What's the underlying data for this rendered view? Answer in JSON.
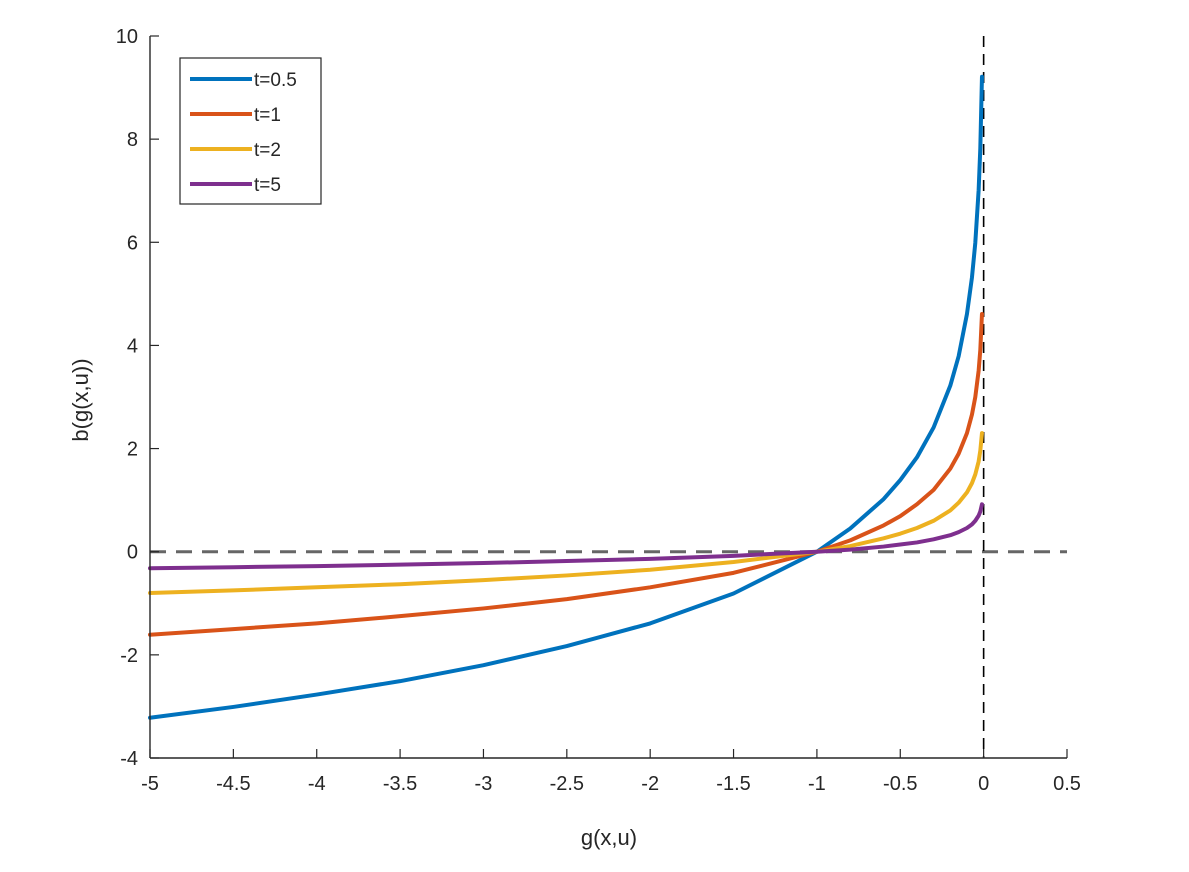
{
  "chart_data": {
    "type": "line",
    "xlabel": "g(x,u)",
    "ylabel": "b(g(x,u))",
    "xlim": [
      -5,
      0.5
    ],
    "ylim": [
      -4,
      10
    ],
    "xticks": [
      -5,
      -4.5,
      -4,
      -3.5,
      -3,
      -2.5,
      -2,
      -1.5,
      -1,
      -0.5,
      0,
      0.5
    ],
    "yticks": [
      -4,
      -2,
      0,
      2,
      4,
      6,
      8,
      10
    ],
    "xtick_labels": [
      "-5",
      "-4.5",
      "-4",
      "-3.5",
      "-3",
      "-2.5",
      "-2",
      "-1.5",
      "-1",
      "-0.5",
      "0",
      "0.5"
    ],
    "ytick_labels": [
      "-4",
      "-2",
      "0",
      "2",
      "4",
      "6",
      "8",
      "10"
    ],
    "grid": false,
    "legend": {
      "position": "top-left"
    },
    "reference_lines": [
      {
        "orientation": "horizontal",
        "y": 0,
        "style": "dashed",
        "color": "#666666"
      },
      {
        "orientation": "vertical",
        "x": 0,
        "style": "dashed",
        "color": "#000000"
      }
    ],
    "series": [
      {
        "name": "t=0.5",
        "color": "#0072BD",
        "x": [
          -5,
          -4.5,
          -4,
          -3.5,
          -3,
          -2.5,
          -2,
          -1.5,
          -1,
          -0.8,
          -0.6,
          -0.5,
          -0.4,
          -0.3,
          -0.2,
          -0.15,
          -0.1,
          -0.07,
          -0.05,
          -0.03,
          -0.02,
          -0.01
        ],
        "y": [
          -3.22,
          -3.01,
          -2.77,
          -2.51,
          -2.2,
          -1.83,
          -1.39,
          -0.81,
          0.0,
          0.45,
          1.02,
          1.39,
          1.83,
          2.41,
          3.22,
          3.79,
          4.61,
          5.32,
          5.99,
          7.01,
          7.82,
          9.21
        ]
      },
      {
        "name": "t=1",
        "color": "#D95319",
        "x": [
          -5,
          -4.5,
          -4,
          -3.5,
          -3,
          -2.5,
          -2,
          -1.5,
          -1,
          -0.8,
          -0.6,
          -0.5,
          -0.4,
          -0.3,
          -0.2,
          -0.15,
          -0.1,
          -0.07,
          -0.05,
          -0.03,
          -0.02,
          -0.01
        ],
        "y": [
          -1.61,
          -1.5,
          -1.39,
          -1.25,
          -1.1,
          -0.92,
          -0.69,
          -0.41,
          0.0,
          0.22,
          0.51,
          0.69,
          0.92,
          1.2,
          1.61,
          1.9,
          2.3,
          2.66,
          3.0,
          3.51,
          3.91,
          4.61
        ]
      },
      {
        "name": "t=2",
        "color": "#EDB120",
        "x": [
          -5,
          -4.5,
          -4,
          -3.5,
          -3,
          -2.5,
          -2,
          -1.5,
          -1,
          -0.8,
          -0.6,
          -0.5,
          -0.4,
          -0.3,
          -0.2,
          -0.15,
          -0.1,
          -0.07,
          -0.05,
          -0.03,
          -0.02,
          -0.01
        ],
        "y": [
          -0.8,
          -0.75,
          -0.69,
          -0.63,
          -0.55,
          -0.46,
          -0.35,
          -0.2,
          0.0,
          0.11,
          0.26,
          0.35,
          0.46,
          0.6,
          0.8,
          0.95,
          1.15,
          1.33,
          1.5,
          1.75,
          1.96,
          2.3
        ]
      },
      {
        "name": "t=5",
        "color": "#7E2F8E",
        "x": [
          -5,
          -4.5,
          -4,
          -3.5,
          -3,
          -2.5,
          -2,
          -1.5,
          -1,
          -0.8,
          -0.6,
          -0.5,
          -0.4,
          -0.3,
          -0.2,
          -0.15,
          -0.1,
          -0.07,
          -0.05,
          -0.03,
          -0.02,
          -0.01
        ],
        "y": [
          -0.32,
          -0.3,
          -0.28,
          -0.25,
          -0.22,
          -0.18,
          -0.14,
          -0.08,
          0.0,
          0.04,
          0.1,
          0.14,
          0.18,
          0.24,
          0.32,
          0.38,
          0.46,
          0.53,
          0.6,
          0.7,
          0.78,
          0.92
        ]
      }
    ]
  }
}
